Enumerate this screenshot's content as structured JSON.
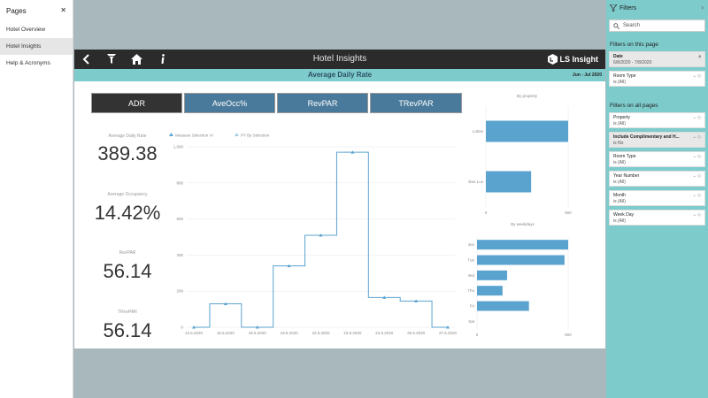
{
  "pages_pane": {
    "title": "Pages",
    "items": [
      "Hotel Overview",
      "Hotel Insights",
      "Help & Acronyms"
    ],
    "active_index": 1
  },
  "report": {
    "title": "Hotel Insights",
    "logo_text": "LS Insight",
    "banner_title": "Average Daily Rate",
    "date_range": "Jun - Jul 2020",
    "measure_buttons": [
      "ADR",
      "AveOcc%",
      "RevPAR",
      "TRevPAR"
    ],
    "selected_measure_index": 0,
    "kpis": [
      {
        "label": "Average Daily Rate",
        "value": "389.38"
      },
      {
        "label": "Average Occupancy",
        "value": "14.42%"
      },
      {
        "label": "RevPAR",
        "value": "56.14"
      },
      {
        "label": "TRevPAR",
        "value": "56.14"
      }
    ],
    "colors": {
      "dark_bar": "#2b2b2b",
      "teal": "#7ecbcc",
      "button": "#4a7a9b",
      "series": "#5ba3cf"
    }
  },
  "chart_data": [
    {
      "type": "line",
      "legend": [
        "Measure Selection VI",
        "PY By Selection"
      ],
      "x_ticks": [
        "12.6.2020",
        "15.6.2020",
        "18.6.2020",
        "19.6.2020",
        "22.6.2020",
        "23.6.2020",
        "24.6.2020",
        "25.6.2020",
        "27.6.2020"
      ],
      "y_ticks": [
        "0",
        "200",
        "400",
        "600",
        "800",
        "1,000"
      ],
      "ylim": [
        0,
        1000
      ],
      "series": [
        {
          "name": "Measure Selection VI",
          "x": [
            0,
            1,
            2,
            3,
            4,
            5,
            6,
            7,
            8
          ],
          "values": [
            0,
            130,
            0,
            340,
            510,
            970,
            165,
            145,
            0
          ]
        }
      ]
    },
    {
      "type": "bar",
      "title": "By property",
      "categories": [
        "Lokse",
        "Lokse Lux"
      ],
      "values": [
        500,
        275
      ],
      "x_ticks": [
        "0",
        "500"
      ],
      "xlim": [
        0,
        500
      ]
    },
    {
      "type": "bar",
      "title": "By weekdays",
      "categories": [
        "Mon",
        "Tue",
        "Wed",
        "Thu",
        "Fri",
        "Sat"
      ],
      "values": [
        500,
        480,
        165,
        140,
        285,
        0
      ],
      "x_ticks": [
        "0",
        "500"
      ],
      "xlim": [
        0,
        500
      ]
    }
  ],
  "filters": {
    "title": "Filters",
    "search_placeholder": "Search",
    "on_this_page_label": "Filters on this page",
    "on_all_pages_label": "Filters on all pages",
    "page_filters": [
      {
        "name": "Date",
        "value": "6/8/2020 - 7/8/2020"
      },
      {
        "name": "Room Type",
        "value": "is (All)"
      }
    ],
    "all_filters": [
      {
        "name": "Property",
        "value": "is (All)"
      },
      {
        "name": "Include Complimentary and H...",
        "value": "is No"
      },
      {
        "name": "Room Type",
        "value": "is (All)"
      },
      {
        "name": "Year Number",
        "value": "is (All)"
      },
      {
        "name": "Month",
        "value": "is (All)"
      },
      {
        "name": "Week Day",
        "value": "is (All)"
      }
    ]
  }
}
